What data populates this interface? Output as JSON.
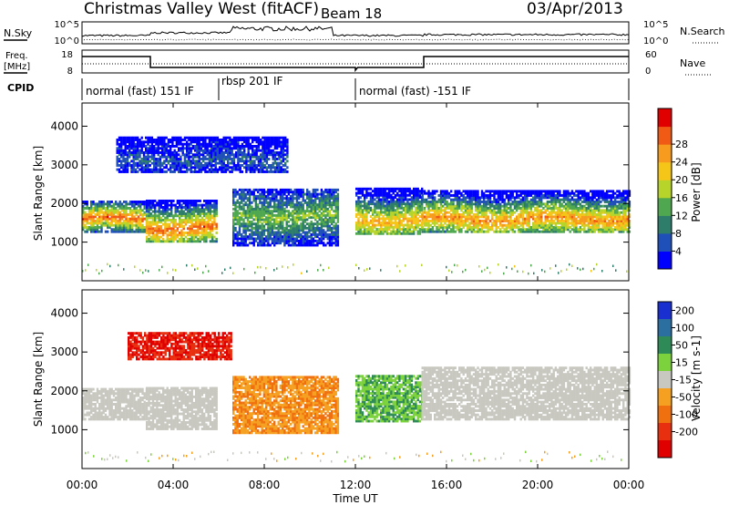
{
  "header": {
    "station": "Christmas Valley West (fitACF)",
    "beam": "Beam 18",
    "date": "03/Apr/2013"
  },
  "noise_panel": {
    "left_label": "N.Sky",
    "right_label": "N.Search",
    "left_ticks": [
      "10^5",
      "10^0"
    ],
    "right_ticks": [
      "10^5",
      "10^0"
    ]
  },
  "freq_panel": {
    "left_label_line1": "Freq.",
    "left_label_line2": "[MHz]",
    "right_label": "Nave",
    "left_ticks": [
      "18",
      "8"
    ],
    "right_ticks": [
      "60",
      "0"
    ]
  },
  "cpid": {
    "label": "CPID",
    "segments": [
      {
        "text": "normal (fast) 151 IF",
        "start_hour": 0,
        "end_hour": 6
      },
      {
        "text": "rbsp 201 IF",
        "start_hour": 6,
        "end_hour": 12
      },
      {
        "text": "normal (fast) -151 IF",
        "start_hour": 12,
        "end_hour": 24
      }
    ]
  },
  "x_axis": {
    "label": "Time UT",
    "ticks": [
      "00:00",
      "04:00",
      "08:00",
      "12:00",
      "16:00",
      "20:00",
      "00:00"
    ],
    "range_hours": [
      0,
      24
    ]
  },
  "power_panel": {
    "ylabel": "Slant Range [km]",
    "yticks": [
      "1000",
      "2000",
      "3000",
      "4000"
    ],
    "colorbar_label": "Power [dB]",
    "colorbar_ticks": [
      "4",
      "8",
      "12",
      "16",
      "20",
      "24",
      "28"
    ],
    "colorbar_colors": [
      "#0000ff",
      "#1f4fb8",
      "#2e7d6a",
      "#4fa84f",
      "#b7d42a",
      "#f5c518",
      "#f79b1e",
      "#f05a14",
      "#e00000"
    ]
  },
  "velocity_panel": {
    "ylabel": "Slant Range [km]",
    "yticks": [
      "1000",
      "2000",
      "3000",
      "4000"
    ],
    "colorbar_label": "Velocity [m s-1]",
    "colorbar_ticks": [
      "200",
      "100",
      "50",
      "15",
      "-15",
      "-50",
      "-100",
      "-200"
    ],
    "colorbar_colors": [
      "#1a2fd0",
      "#2a6fa0",
      "#2e8b57",
      "#7cd23c",
      "#c8c8c0",
      "#f5a020",
      "#f07010",
      "#e83010",
      "#e00000"
    ]
  },
  "chart_data": [
    {
      "type": "heatmap",
      "title": "Power [dB]",
      "xlabel": "Time UT",
      "ylabel": "Slant Range [km]",
      "xlim": [
        0,
        24
      ],
      "ylim": [
        0,
        4600
      ],
      "bands": [
        {
          "t0": 0.0,
          "t1": 2.8,
          "r0": 1250,
          "r1": 2050,
          "core": 1580,
          "level": 26
        },
        {
          "t0": 2.8,
          "t1": 5.9,
          "r0": 1000,
          "r1": 2100,
          "core": 1350,
          "level": 26
        },
        {
          "t0": 6.6,
          "t1": 11.2,
          "r0": 900,
          "r1": 2350,
          "core": 1650,
          "level": 14
        },
        {
          "t0": 12.0,
          "t1": 14.9,
          "r0": 1200,
          "r1": 2400,
          "core": 1550,
          "level": 22
        },
        {
          "t0": 14.9,
          "t1": 24.0,
          "r0": 1250,
          "r1": 2350,
          "core": 1580,
          "level": 24
        },
        {
          "t0": 1.5,
          "t1": 9.0,
          "r0": 2800,
          "r1": 3700,
          "core": 3100,
          "level": 6
        }
      ]
    },
    {
      "type": "heatmap",
      "title": "Velocity [m s-1]",
      "xlabel": "Time UT",
      "ylabel": "Slant Range [km]",
      "xlim": [
        0,
        24
      ],
      "ylim": [
        0,
        4600
      ],
      "bands": [
        {
          "t0": 0.0,
          "t1": 2.8,
          "r0": 1250,
          "r1": 2050,
          "core": 1580,
          "level": 0
        },
        {
          "t0": 2.8,
          "t1": 5.9,
          "r0": 1000,
          "r1": 2100,
          "core": 1350,
          "level": 0
        },
        {
          "t0": 6.6,
          "t1": 11.2,
          "r0": 900,
          "r1": 2350,
          "core": 1650,
          "level": -30
        },
        {
          "t0": 12.0,
          "t1": 14.9,
          "r0": 1200,
          "r1": 2400,
          "core": 1550,
          "level": 30
        },
        {
          "t0": 14.9,
          "t1": 24.0,
          "r0": 1250,
          "r1": 2600,
          "core": 1580,
          "level": 0
        },
        {
          "t0": 2.0,
          "t1": 6.5,
          "r0": 2800,
          "r1": 3500,
          "core": 3100,
          "level": -150
        }
      ]
    }
  ]
}
